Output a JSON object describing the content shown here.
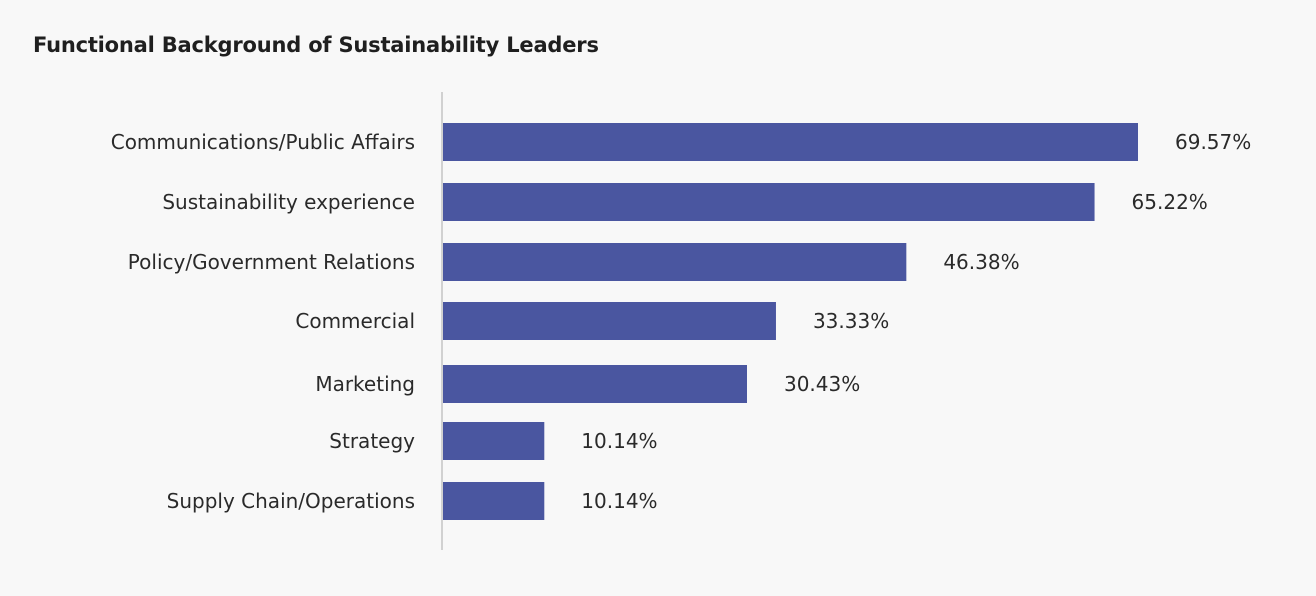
{
  "chart_data": {
    "type": "bar",
    "orientation": "horizontal",
    "title": "Functional Background of Sustainability Leaders",
    "xlabel": "",
    "ylabel": "",
    "categories": [
      "Communications/Public Affairs",
      "Sustainability experience",
      "Policy/Government Relations",
      "Commercial",
      "Marketing",
      "Strategy",
      "Supply Chain/Operations"
    ],
    "values": [
      69.57,
      65.22,
      46.38,
      33.33,
      30.43,
      10.14,
      10.14
    ],
    "value_labels": [
      "69.57%",
      "65.22%",
      "46.38%",
      "33.33%",
      "30.43%",
      "10.14%",
      "10.14%"
    ],
    "xlim": [
      0,
      100
    ],
    "grid": false,
    "legend": "none",
    "bar_color": "#4a56a0"
  }
}
